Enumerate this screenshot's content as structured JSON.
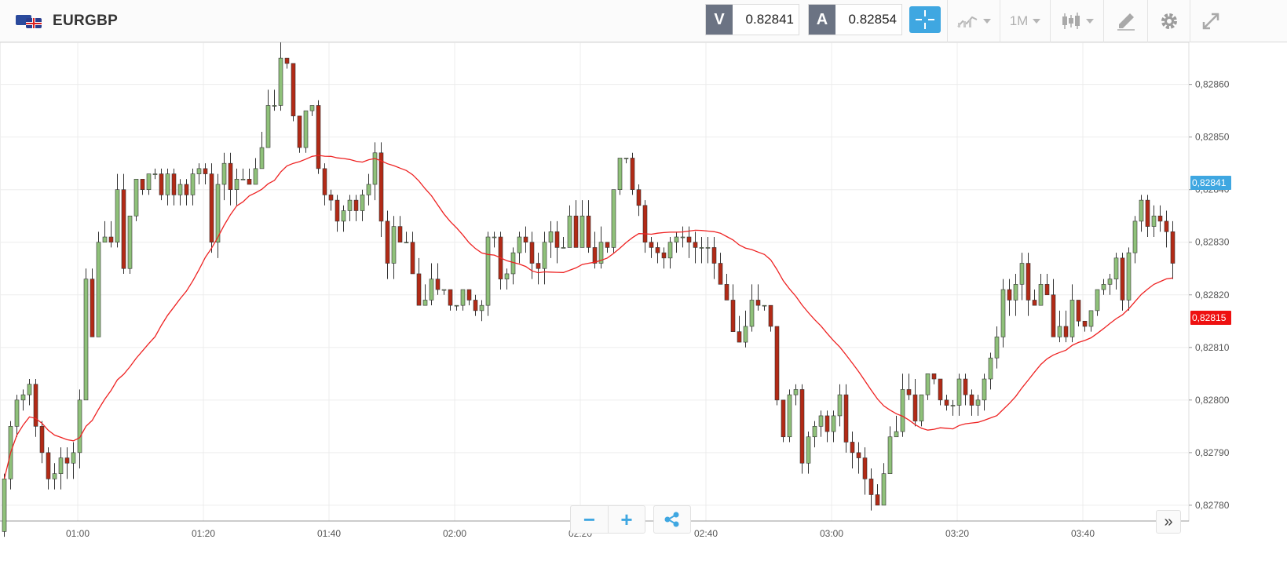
{
  "header": {
    "symbol": "EURGBP",
    "flag_icon": "eur-gbp-flag-icon",
    "bid_tag": "V",
    "bid_price": "0.82841",
    "ask_tag": "A",
    "ask_price": "0.82854",
    "crosshair_icon": "crosshair-icon",
    "chart_type_icon": "line-chart-icon",
    "interval": "1M",
    "candles_icon": "candlestick-icon",
    "draw_icon": "drawing-tools-icon",
    "settings_icon": "gear-icon",
    "fullscreen_icon": "expand-icon",
    "accent_color": "#3fa7e1"
  },
  "chart_data": {
    "type": "candlestick",
    "symbol": "EURGBP",
    "interval": "1M",
    "x_ticks": [
      "01:00",
      "01:20",
      "01:40",
      "02:00",
      "02:20",
      "02:40",
      "03:00",
      "03:20",
      "03:40"
    ],
    "y_ticks": [
      "0,82780",
      "0,82790",
      "0,82800",
      "0,82810",
      "0,82820",
      "0,82830",
      "0,82840",
      "0,82850",
      "0,82860"
    ],
    "ylim": [
      0.82777,
      0.82868
    ],
    "grid": true,
    "up_color": "#8fc17a",
    "down_color": "#b22a16",
    "ma_color": "#ee2222",
    "current_bid_label": "0,82841",
    "ma_label": "0,82815",
    "close_series": [
      0.82785,
      0.82795,
      0.828,
      0.82801,
      0.82803,
      0.82795,
      0.8279,
      0.82785,
      0.82786,
      0.82789,
      0.82788,
      0.8279,
      0.828,
      0.82823,
      0.82812,
      0.8283,
      0.82831,
      0.8283,
      0.8284,
      0.82825,
      0.82835,
      0.82842,
      0.8284,
      0.82843,
      0.82843,
      0.82839,
      0.82843,
      0.82839,
      0.82841,
      0.82839,
      0.82843,
      0.82844,
      0.82843,
      0.8283,
      0.82841,
      0.82845,
      0.8284,
      0.82842,
      0.82842,
      0.82841,
      0.82844,
      0.82848,
      0.82856,
      0.82856,
      0.82865,
      0.82864,
      0.82854,
      0.82848,
      0.82855,
      0.82856,
      0.82844,
      0.82839,
      0.82838,
      0.82834,
      0.82836,
      0.82838,
      0.82836,
      0.82839,
      0.82841,
      0.82847,
      0.82834,
      0.82826,
      0.82833,
      0.8283,
      0.8283,
      0.82824,
      0.82818,
      0.82819,
      0.82823,
      0.82821,
      0.82821,
      0.82818,
      0.82818,
      0.82821,
      0.82819,
      0.82817,
      0.82818,
      0.82831,
      0.82831,
      0.82823,
      0.82824,
      0.82828,
      0.82831,
      0.8283,
      0.82826,
      0.82825,
      0.8283,
      0.82832,
      0.82829,
      0.82829,
      0.82835,
      0.82829,
      0.82835,
      0.82829,
      0.82826,
      0.8283,
      0.82829,
      0.8284,
      0.82846,
      0.82846,
      0.8284,
      0.82837,
      0.8283,
      0.82829,
      0.82828,
      0.82827,
      0.8283,
      0.82831,
      0.82831,
      0.8283,
      0.82829,
      0.82829,
      0.82829,
      0.82826,
      0.82822,
      0.82819,
      0.82813,
      0.82811,
      0.82814,
      0.82819,
      0.82818,
      0.82818,
      0.82814,
      0.828,
      0.82793,
      0.82801,
      0.82802,
      0.82788,
      0.82793,
      0.82795,
      0.82797,
      0.82794,
      0.82797,
      0.82801,
      0.82792,
      0.8279,
      0.82789,
      0.82785,
      0.82782,
      0.8278,
      0.82786,
      0.82793,
      0.82794,
      0.82802,
      0.82801,
      0.82796,
      0.82801,
      0.82805,
      0.82804,
      0.828,
      0.82799,
      0.82799,
      0.82804,
      0.82801,
      0.82799,
      0.828,
      0.82804,
      0.82808,
      0.82812,
      0.82821,
      0.82819,
      0.82822,
      0.82826,
      0.82819,
      0.82818,
      0.82822,
      0.8282,
      0.82812,
      0.82814,
      0.82812,
      0.82819,
      0.82815,
      0.82814,
      0.82817,
      0.82821,
      0.82822,
      0.82823,
      0.82827,
      0.82819,
      0.82828,
      0.82834,
      0.82838,
      0.82833,
      0.82835,
      0.82834,
      0.82832,
      0.82826
    ]
  },
  "controls": {
    "zoom_out_label": "−",
    "zoom_in_label": "+",
    "share_icon": "share-icon",
    "scroll_right_label": "»"
  }
}
